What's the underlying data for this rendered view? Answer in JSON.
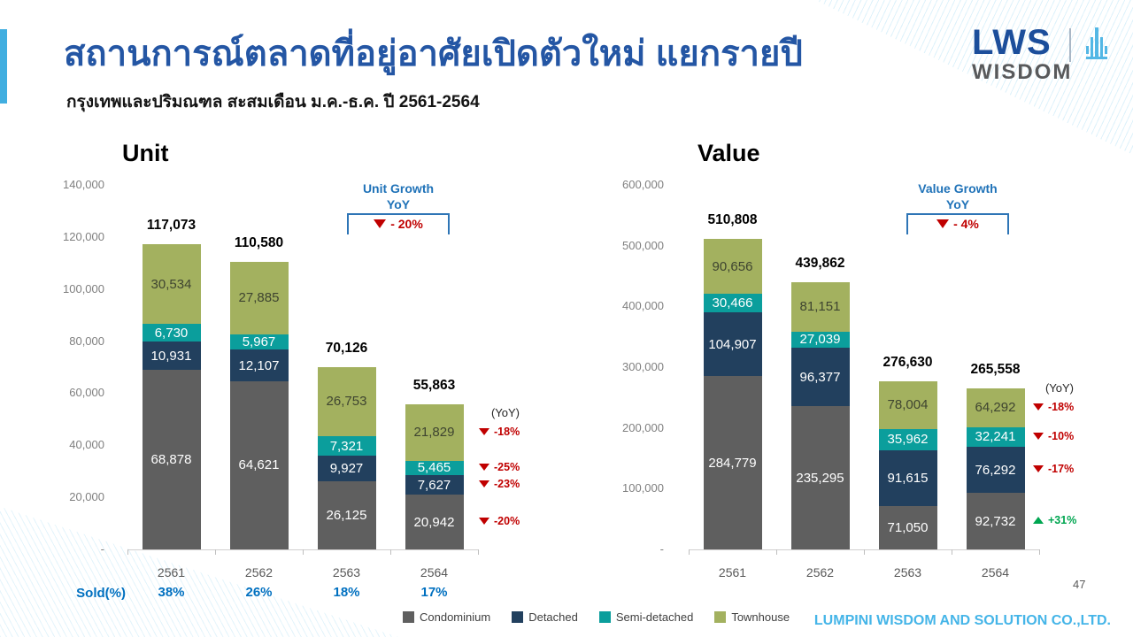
{
  "slide": {
    "title": "สถานการณ์ตลาดที่อยู่อาศัยเปิดตัวใหม่ แยกรายปี",
    "subtitle": "กรุงเทพและปริมณฑล สะสมเดือน ม.ค.-ธ.ค. ปี 2561-2564",
    "page_number": "47",
    "footer_company": "LUMPINI WISDOM AND SOLUTION CO.,LTD."
  },
  "logo": {
    "primary": "LWS",
    "secondary": "WISDOM",
    "icon": "building-spire-icon"
  },
  "colors": {
    "title_blue": "#2456A4",
    "accent_light_blue": "#41AEE0",
    "condominium": "#5F5F5F",
    "detached": "#22405E",
    "semi_detached": "#0B9E9C",
    "townhouse": "#A3B15F",
    "negative_red": "#C00000",
    "positive_green": "#00A651",
    "growth_label_blue": "#1F72B8",
    "sold_blue": "#0070C0",
    "footer_blue": "#45B5E8"
  },
  "legend": [
    {
      "label": "Condominium",
      "color": "#5F5F5F"
    },
    {
      "label": "Detached",
      "color": "#22405E"
    },
    {
      "label": "Semi-detached",
      "color": "#0B9E9C"
    },
    {
      "label": "Townhouse",
      "color": "#A3B15F"
    }
  ],
  "sold_row": {
    "label": "Sold(%)",
    "values": [
      "38%",
      "26%",
      "18%",
      "17%"
    ]
  },
  "chart_data": [
    {
      "type": "bar",
      "stacked": true,
      "title": "Unit",
      "categories": [
        "2561",
        "2562",
        "2563",
        "2564"
      ],
      "series": [
        {
          "name": "Condominium",
          "color": "#5F5F5F",
          "label_color": "#FFFFFF",
          "values": [
            68878,
            64621,
            26125,
            20942
          ]
        },
        {
          "name": "Detached",
          "color": "#22405E",
          "label_color": "#FFFFFF",
          "values": [
            10931,
            12107,
            9927,
            7627
          ]
        },
        {
          "name": "Semi-detached",
          "color": "#0B9E9C",
          "label_color": "#FFFFFF",
          "values": [
            6730,
            5967,
            7321,
            5465
          ]
        },
        {
          "name": "Townhouse",
          "color": "#A3B15F",
          "label_color": "#3E4430",
          "values": [
            30534,
            27885,
            26753,
            21829
          ]
        }
      ],
      "totals": [
        "117,073",
        "110,580",
        "70,126",
        "55,863"
      ],
      "ylim": [
        0,
        140000
      ],
      "ytick_step": 20000,
      "yticks": [
        "140,000",
        "120,000",
        "100,000",
        "80,000",
        "60,000",
        "40,000",
        "20,000",
        "-"
      ],
      "grid": false,
      "growth": {
        "line1": "Unit Growth",
        "line2": "YoY",
        "value": "- 20%",
        "direction": "down"
      },
      "yoy_header": "(YoY)",
      "yoy": [
        {
          "text": "-20%",
          "dir": "down"
        },
        {
          "text": "-23%",
          "dir": "down"
        },
        {
          "text": "-25%",
          "dir": "down"
        },
        {
          "text": "-18%",
          "dir": "down"
        }
      ]
    },
    {
      "type": "bar",
      "stacked": true,
      "title": "Value",
      "categories": [
        "2561",
        "2562",
        "2563",
        "2564"
      ],
      "series": [
        {
          "name": "Condominium",
          "color": "#5F5F5F",
          "label_color": "#FFFFFF",
          "values": [
            284779,
            235295,
            71050,
            92732
          ]
        },
        {
          "name": "Detached",
          "color": "#22405E",
          "label_color": "#FFFFFF",
          "values": [
            104907,
            96377,
            91615,
            76292
          ]
        },
        {
          "name": "Semi-detached",
          "color": "#0B9E9C",
          "label_color": "#FFFFFF",
          "values": [
            30466,
            27039,
            35962,
            32241
          ]
        },
        {
          "name": "Townhouse",
          "color": "#A3B15F",
          "label_color": "#3E4430",
          "values": [
            90656,
            81151,
            78004,
            64292
          ]
        }
      ],
      "totals": [
        "510,808",
        "439,862",
        "276,630",
        "265,558"
      ],
      "ylim": [
        0,
        600000
      ],
      "ytick_step": 100000,
      "yticks": [
        "600,000",
        "500,000",
        "400,000",
        "300,000",
        "200,000",
        "100,000",
        "-"
      ],
      "grid": false,
      "growth": {
        "line1": "Value Growth",
        "line2": "YoY",
        "value": "- 4%",
        "direction": "down"
      },
      "yoy_header": "(YoY)",
      "yoy": [
        {
          "text": "+31%",
          "dir": "up"
        },
        {
          "text": "-17%",
          "dir": "down"
        },
        {
          "text": "-10%",
          "dir": "down"
        },
        {
          "text": "-18%",
          "dir": "down"
        }
      ]
    }
  ]
}
